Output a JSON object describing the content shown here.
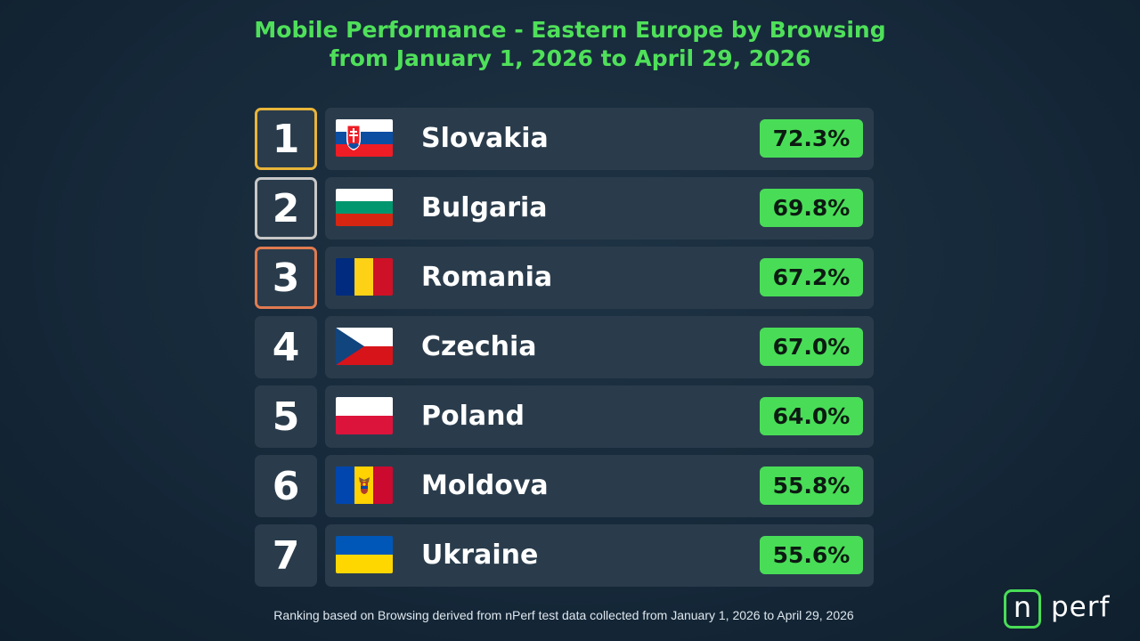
{
  "title_lines": [
    "Mobile Performance - Eastern Europe by Browsing",
    "from January 1, 2026 to April 29, 2026"
  ],
  "chart_data": {
    "type": "table",
    "title": "Mobile Performance - Eastern Europe by Browsing from January 1, 2026 to April 29, 2026",
    "columns": [
      "rank",
      "country",
      "value"
    ],
    "rows": [
      {
        "rank": "1",
        "country": "Slovakia",
        "value": "72.3%",
        "flag": "slovakia-flag-icon",
        "rank_color": "#e8b53a"
      },
      {
        "rank": "2",
        "country": "Bulgaria",
        "value": "69.8%",
        "flag": "bulgaria-flag-icon",
        "rank_color": "#c8c8c8"
      },
      {
        "rank": "3",
        "country": "Romania",
        "value": "67.2%",
        "flag": "romania-flag-icon",
        "rank_color": "#e07b50"
      },
      {
        "rank": "4",
        "country": "Czechia",
        "value": "67.0%",
        "flag": "czechia-flag-icon"
      },
      {
        "rank": "5",
        "country": "Poland",
        "value": "64.0%",
        "flag": "poland-flag-icon"
      },
      {
        "rank": "6",
        "country": "Moldova",
        "value": "55.8%",
        "flag": "moldova-flag-icon"
      },
      {
        "rank": "7",
        "country": "Ukraine",
        "value": "55.6%",
        "flag": "ukraine-flag-icon"
      }
    ]
  },
  "footnote": "Ranking based on Browsing derived from nPerf test data collected from January 1, 2026 to April 29, 2026",
  "logo": {
    "n": "n",
    "rest": "perf"
  },
  "colors": {
    "title": "#4fe05a",
    "value_badge": "#49dd57",
    "card": "#2a3c4c",
    "background": "#16293a"
  }
}
